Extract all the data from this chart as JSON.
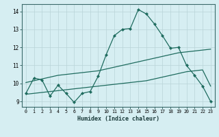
{
  "xlabel": "Humidex (Indice chaleur)",
  "background_color": "#d6eef2",
  "line_color": "#1e6b5e",
  "xlim": [
    -0.5,
    23.5
  ],
  "ylim": [
    8.7,
    14.4
  ],
  "xticks": [
    0,
    1,
    2,
    3,
    4,
    5,
    6,
    7,
    8,
    9,
    10,
    11,
    12,
    13,
    14,
    15,
    16,
    17,
    18,
    19,
    20,
    21,
    22,
    23
  ],
  "yticks": [
    9,
    10,
    11,
    12,
    13,
    14
  ],
  "line1_x": [
    0,
    1,
    2,
    3,
    4,
    5,
    6,
    7,
    8,
    9,
    10,
    11,
    12,
    13,
    14,
    15,
    16,
    17,
    18,
    19,
    20,
    21,
    22,
    23
  ],
  "line1_y": [
    9.45,
    10.3,
    10.2,
    9.3,
    9.9,
    9.45,
    8.95,
    9.45,
    9.55,
    10.4,
    11.6,
    12.65,
    13.0,
    13.05,
    14.1,
    13.85,
    13.3,
    12.65,
    11.95,
    12.0,
    11.0,
    10.45,
    9.85,
    9.0
  ],
  "line2_x": [
    0,
    1,
    2,
    3,
    4,
    5,
    6,
    7,
    8,
    9,
    10,
    11,
    12,
    13,
    14,
    15,
    16,
    17,
    18,
    19,
    20,
    21,
    22,
    23
  ],
  "line2_y": [
    10.05,
    10.15,
    10.25,
    10.35,
    10.45,
    10.5,
    10.55,
    10.6,
    10.65,
    10.7,
    10.8,
    10.9,
    11.0,
    11.1,
    11.2,
    11.3,
    11.4,
    11.5,
    11.6,
    11.7,
    11.75,
    11.8,
    11.85,
    11.9
  ],
  "line3_x": [
    0,
    1,
    2,
    3,
    4,
    5,
    6,
    7,
    8,
    9,
    10,
    11,
    12,
    13,
    14,
    15,
    16,
    17,
    18,
    19,
    20,
    21,
    22,
    23
  ],
  "line3_y": [
    9.4,
    9.45,
    9.5,
    9.55,
    9.6,
    9.65,
    9.7,
    9.75,
    9.8,
    9.85,
    9.9,
    9.95,
    10.0,
    10.05,
    10.1,
    10.15,
    10.25,
    10.35,
    10.45,
    10.55,
    10.65,
    10.7,
    10.75,
    9.85
  ]
}
